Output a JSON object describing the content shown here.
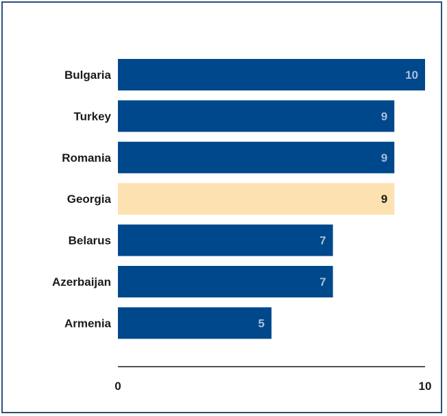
{
  "chart_data": {
    "type": "bar",
    "orientation": "horizontal",
    "categories": [
      "Bulgaria",
      "Turkey",
      "Romania",
      "Georgia",
      "Belarus",
      "Azerbaijan",
      "Armenia"
    ],
    "values": [
      10,
      9,
      9,
      9,
      7,
      7,
      5
    ],
    "highlight": "Georgia",
    "xlim": [
      0,
      10
    ],
    "xticks": [
      "0",
      "10"
    ],
    "title": "",
    "xlabel": "",
    "ylabel": "",
    "grid": false,
    "legend": "none",
    "colors": {
      "bar": "#00488c",
      "highlight_bar": "#fde1b0",
      "value_label_on_bar": "#a9bfd9",
      "value_label_on_highlight": "#1a1a1a",
      "axis": "#1a1a1a",
      "frame": "#2a4f7a"
    }
  }
}
